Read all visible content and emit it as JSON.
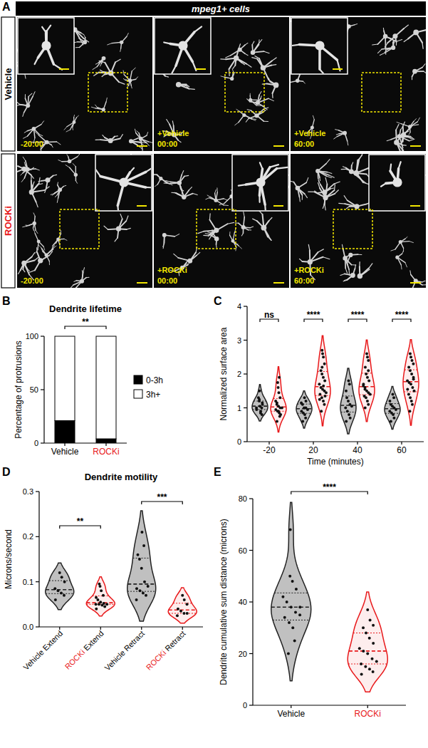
{
  "panel_a": {
    "letter": "A",
    "header": "mpeg1+ cells",
    "rows": [
      {
        "label": "Vehicle",
        "color": "#000000",
        "tiles": [
          {
            "time": "-20:00"
          },
          {
            "treatment": "+Vehicle",
            "time": "00:00"
          },
          {
            "treatment": "+Vehicle",
            "time": "60:00"
          }
        ]
      },
      {
        "label": "ROCKi",
        "color": "#e8191b",
        "tiles": [
          {
            "time": "-20:00"
          },
          {
            "treatment": "+ROCKi",
            "time": "00:00"
          },
          {
            "treatment": "+ROCKi",
            "time": "60:00"
          }
        ]
      }
    ]
  },
  "chart_data": [
    {
      "panel": "B",
      "type": "bar",
      "stacked": true,
      "title": "Dendrite lifetime",
      "ylabel": "Percentage of protrusions",
      "categories": [
        "Vehicle",
        "ROCKi"
      ],
      "series": [
        {
          "name": "0-3h",
          "color": "#000000",
          "values": [
            21,
            4
          ]
        },
        {
          "name": "3h+",
          "color": "#ffffff",
          "values": [
            79,
            96
          ]
        }
      ],
      "ylim": [
        0,
        100
      ],
      "yticks": [
        0,
        50,
        100
      ],
      "legend": "right",
      "annotations": [
        {
          "text": "**",
          "between": [
            "Vehicle",
            "ROCKi"
          ]
        }
      ]
    },
    {
      "panel": "C",
      "type": "violin",
      "ylabel": "Normalized surface area",
      "xlabel": "Time (minutes)",
      "categories": [
        "-20",
        "20",
        "40",
        "60"
      ],
      "series": [
        {
          "color": "#c0c0c0",
          "values": [
            [
              1.0,
              1.1,
              0.9,
              1.2,
              1.3,
              0.8,
              1.0,
              1.05,
              1.5,
              0.95,
              1.15,
              0.85,
              1.25
            ],
            [
              0.6,
              0.7,
              0.8,
              0.85,
              0.9,
              0.95,
              1.0,
              1.0,
              1.1,
              1.15,
              1.2,
              1.3
            ],
            [
              0.6,
              0.7,
              0.8,
              0.9,
              1.0,
              1.05,
              1.1,
              1.2,
              1.3,
              1.5,
              1.7,
              1.8
            ],
            [
              0.6,
              0.7,
              0.8,
              0.85,
              0.9,
              0.95,
              1.0,
              1.05,
              1.1,
              1.2,
              1.3,
              1.4
            ]
          ]
        },
        {
          "color": "#e8191b",
          "values": [
            [
              0.6,
              0.8,
              0.85,
              0.9,
              0.95,
              1.0,
              1.0,
              1.05,
              1.1,
              1.2,
              1.3,
              1.45,
              1.6,
              1.75,
              1.9,
              0.75,
              0.9,
              1.15
            ],
            [
              0.9,
              1.1,
              1.2,
              1.3,
              1.4,
              1.45,
              1.5,
              1.55,
              1.6,
              1.7,
              1.8,
              1.9,
              2.0,
              2.1,
              2.3,
              2.5,
              2.6,
              2.7,
              1.25,
              1.35,
              1.65,
              2.2
            ],
            [
              1.0,
              1.1,
              1.2,
              1.3,
              1.35,
              1.4,
              1.45,
              1.5,
              1.6,
              1.7,
              1.8,
              1.9,
              2.0,
              2.2,
              2.4,
              2.5,
              2.6,
              1.55,
              1.65,
              2.1
            ],
            [
              0.9,
              1.1,
              1.2,
              1.3,
              1.4,
              1.5,
              1.6,
              1.7,
              1.75,
              1.8,
              1.9,
              2.0,
              2.1,
              2.2,
              2.3,
              2.4,
              2.5,
              2.6,
              1.55,
              1.85
            ]
          ]
        }
      ],
      "ylim": [
        0,
        4
      ],
      "yticks": [
        0,
        1,
        2,
        3,
        4
      ],
      "annotations": [
        {
          "text": "ns",
          "category": "-20"
        },
        {
          "text": "****",
          "category": "20"
        },
        {
          "text": "****",
          "category": "40"
        },
        {
          "text": "****",
          "category": "60"
        }
      ]
    },
    {
      "panel": "D",
      "type": "violin",
      "title": "Dendrite motility",
      "ylabel": "Microns/second",
      "categories": [
        "Vehicle Extend",
        "ROCKi Extend",
        "Vehicle Retract",
        "ROCKi Retract"
      ],
      "values": [
        [
          0.06,
          0.07,
          0.075,
          0.08,
          0.085,
          0.1,
          0.11,
          0.12
        ],
        [
          0.04,
          0.045,
          0.048,
          0.05,
          0.05,
          0.05,
          0.052,
          0.055,
          0.06,
          0.065,
          0.07,
          0.08,
          0.09,
          0.095
        ],
        [
          0.06,
          0.07,
          0.075,
          0.08,
          0.085,
          0.09,
          0.1,
          0.13,
          0.15,
          0.16,
          0.18,
          0.21
        ],
        [
          0.025,
          0.03,
          0.03,
          0.035,
          0.04,
          0.05,
          0.06,
          0.07
        ]
      ],
      "colors": [
        "#c0c0c0",
        "#e8191b",
        "#c0c0c0",
        "#e8191b"
      ],
      "ylim": [
        0,
        0.3
      ],
      "yticks": [
        {
          "value": 0,
          "label": "0.0"
        },
        0.1,
        0.2,
        0.3
      ],
      "annotations": [
        {
          "text": "**",
          "between": [
            "Vehicle Extend",
            "ROCKi Extend"
          ]
        },
        {
          "text": "***",
          "between": [
            "Vehicle Retract",
            "ROCKi Retract"
          ]
        }
      ]
    },
    {
      "panel": "E",
      "type": "violin",
      "ylabel": "Dendrite cumulative sum distance (microns)",
      "categories": [
        "Vehicle",
        "ROCKi"
      ],
      "values": [
        [
          20,
          25,
          30,
          32,
          34,
          35,
          36,
          38,
          40,
          42,
          45,
          48,
          50,
          68,
          38
        ],
        [
          12,
          13,
          14,
          15,
          16,
          17,
          18,
          20,
          21,
          22,
          24,
          26,
          28,
          30,
          31,
          33,
          37
        ]
      ],
      "colors": [
        "#c0c0c0",
        "#e8191b"
      ],
      "ylim": [
        0,
        80
      ],
      "yticks": [
        0,
        20,
        40,
        60,
        80
      ],
      "annotations": [
        {
          "text": "****",
          "between": [
            "Vehicle",
            "ROCKi"
          ]
        }
      ]
    }
  ]
}
